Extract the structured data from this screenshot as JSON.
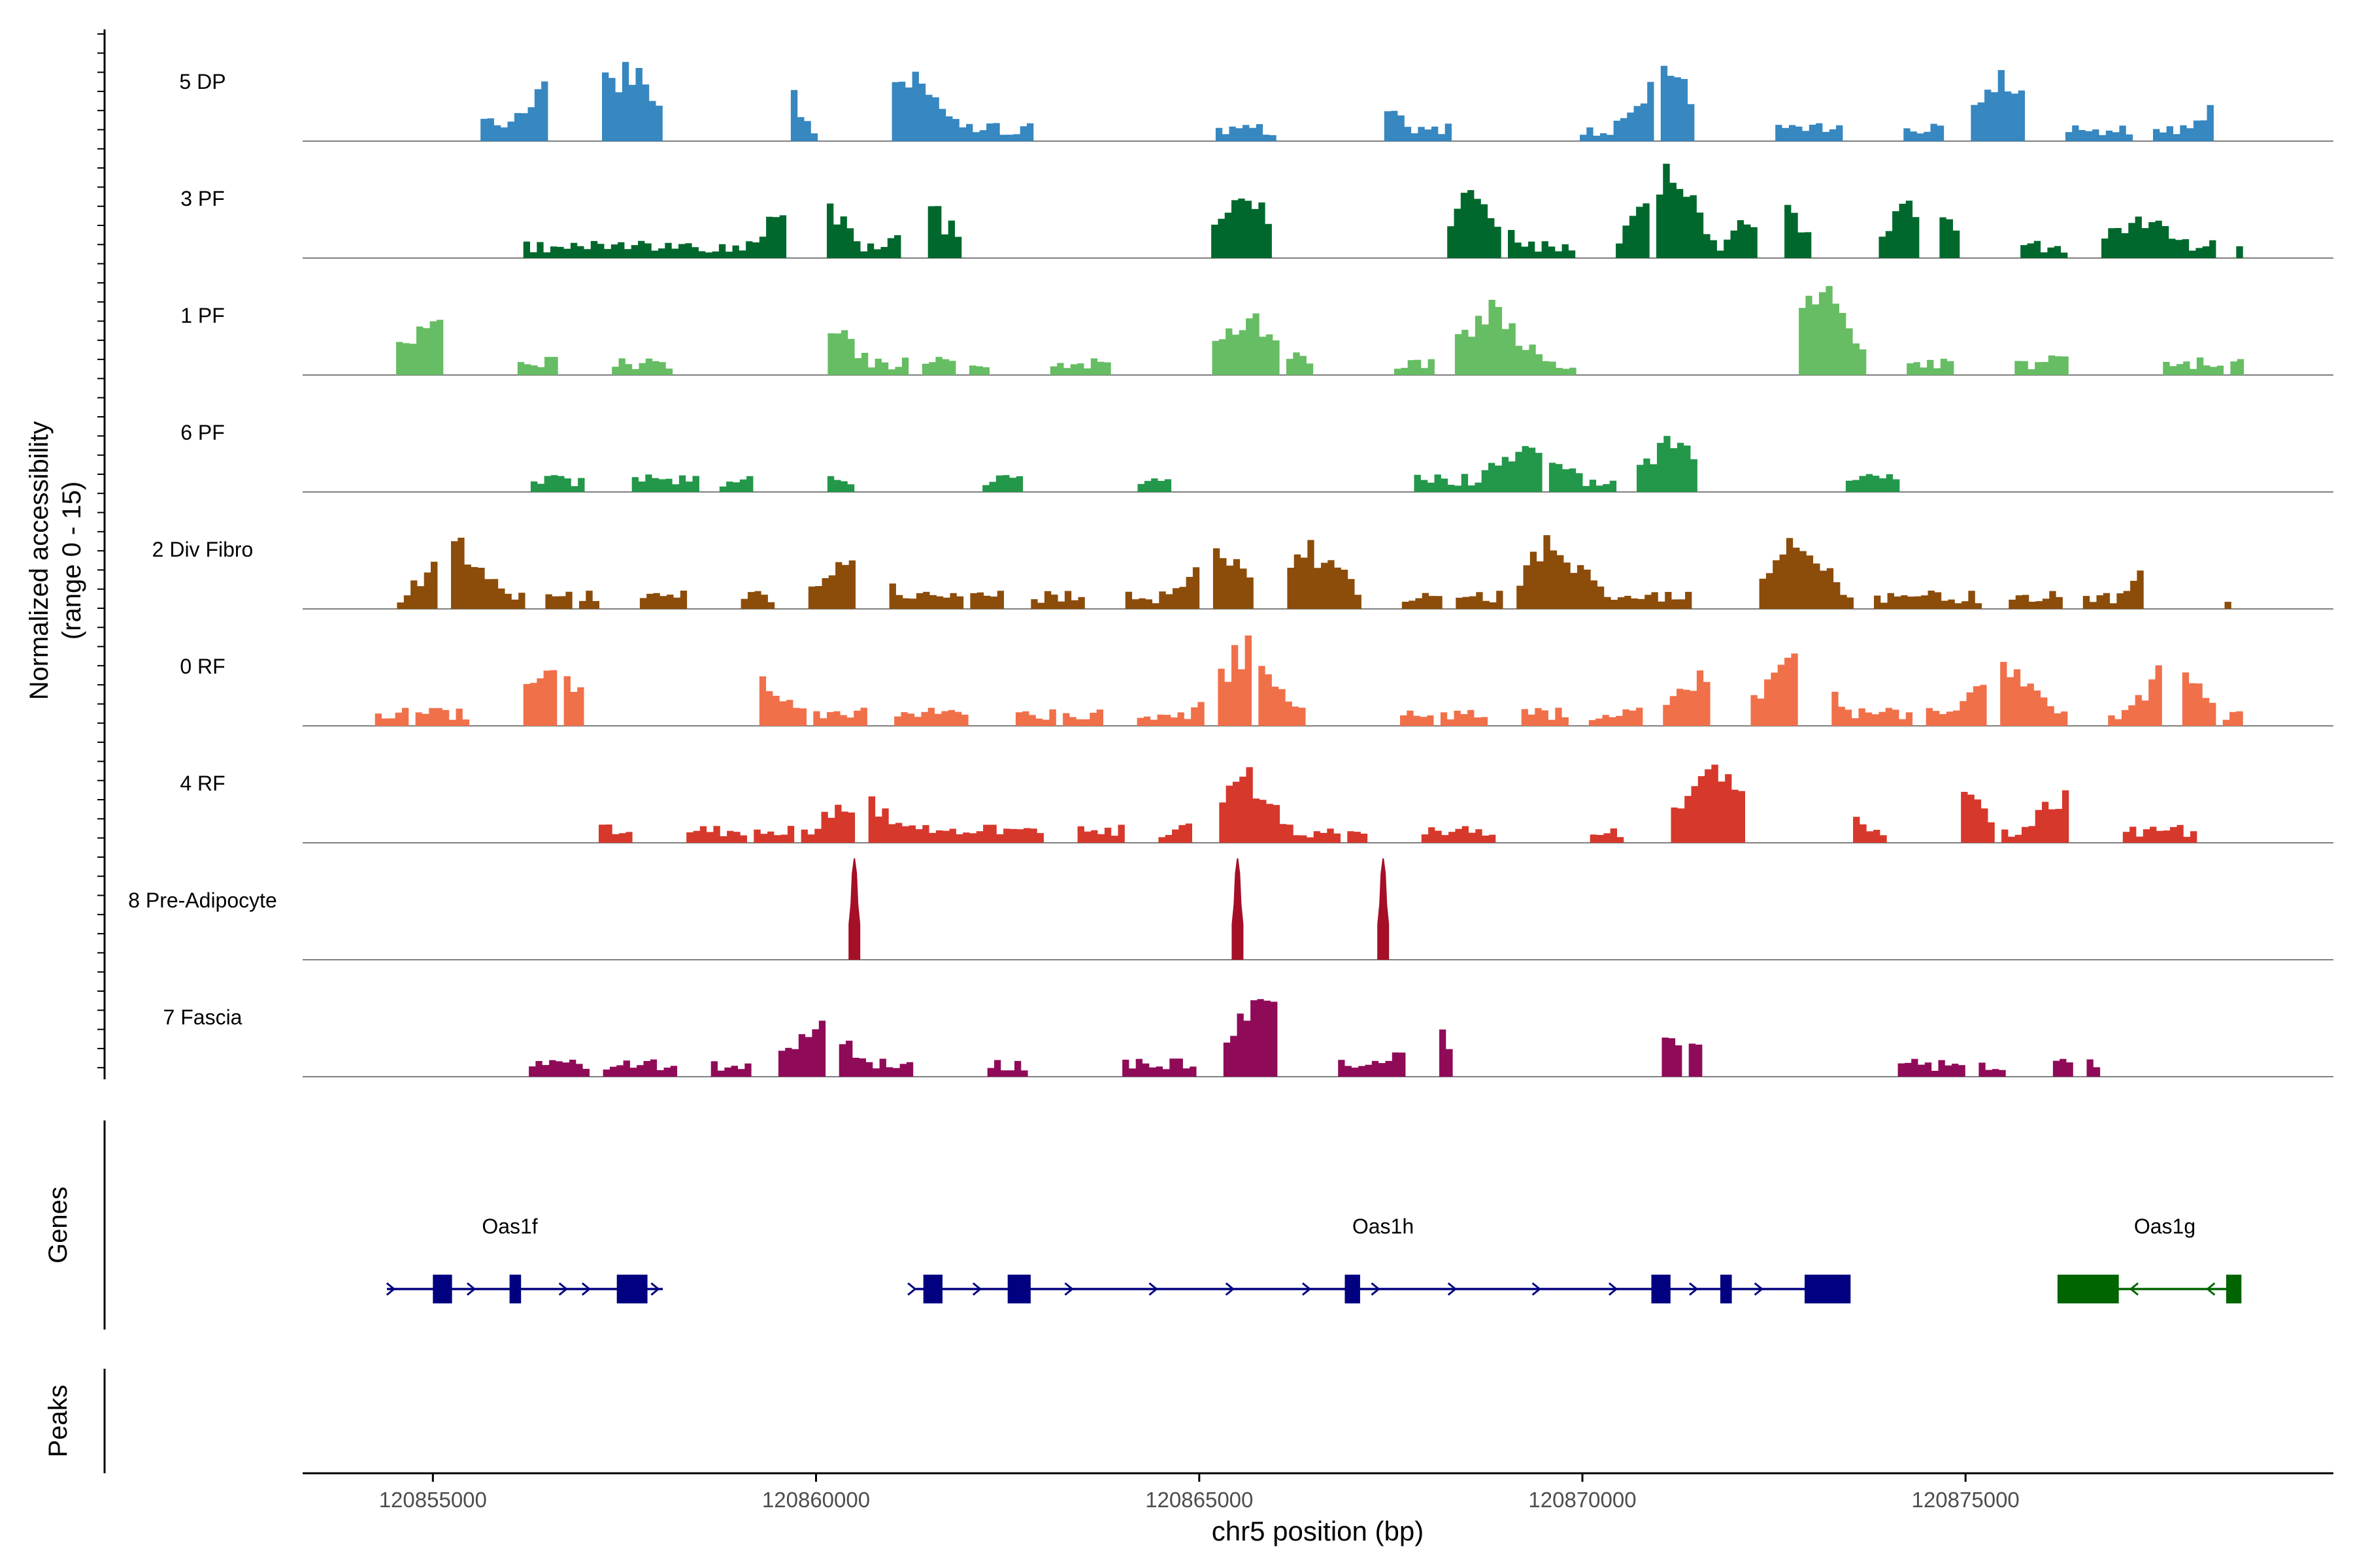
{
  "chart_data": {
    "type": "area",
    "title": "",
    "xlabel": "chr5 position (bp)",
    "ylabel_line1": "Normalized accessibility",
    "ylabel_line2": "(range 0 - 15)",
    "y_range": [
      0,
      15
    ],
    "x_range": [
      120853300,
      120879800
    ],
    "x_ticks": [
      120855000,
      120860000,
      120865000,
      120870000,
      120875000
    ],
    "x_tick_labels": [
      "120855000",
      "120860000",
      "120865000",
      "120870000",
      "120875000"
    ],
    "panel_labels": {
      "genes": "Genes",
      "peaks": "Peaks"
    },
    "tracks": [
      {
        "name": "5 DP",
        "color": "#3787c0",
        "seed": 11,
        "start": 120855050,
        "end": 120878600,
        "density": 0.55,
        "clusters": [
          [
            120855100,
            0.8
          ],
          [
            120856600,
            0.6
          ],
          [
            120857200,
            0.65
          ],
          [
            120857600,
            0.7
          ],
          [
            120858100,
            0.55
          ],
          [
            120859300,
            0.85
          ],
          [
            120859000,
            0.6
          ],
          [
            120861200,
            0.7
          ],
          [
            120867100,
            0.5
          ],
          [
            120871100,
            0.7
          ],
          [
            120875500,
            0.55
          ],
          [
            120878600,
            0.65
          ]
        ],
        "gaps": [
          [
            120862800,
            120865000
          ],
          [
            120868300,
            120869600
          ]
        ]
      },
      {
        "name": "3 PF",
        "color": "#00682c",
        "seed": 23,
        "start": 120854200,
        "end": 120878600,
        "density": 0.6,
        "clusters": [
          [
            120854400,
            0.35
          ],
          [
            120855300,
            0.55
          ],
          [
            120859900,
            0.95
          ],
          [
            120861500,
            0.4
          ],
          [
            120862700,
            0.5
          ],
          [
            120865600,
            0.6
          ],
          [
            120868500,
            0.6
          ],
          [
            120871100,
            0.9
          ],
          [
            120872500,
            0.6
          ],
          [
            120874400,
            0.6
          ],
          [
            120877300,
            0.4
          ]
        ],
        "gaps": [
          [
            120862900,
            120865000
          ]
        ]
      },
      {
        "name": "1 PF",
        "color": "#66bd63",
        "seed": 37,
        "start": 120854300,
        "end": 120878600,
        "density": 0.6,
        "clusters": [
          [
            120855000,
            0.5
          ],
          [
            120860000,
            0.7
          ],
          [
            120865700,
            0.55
          ],
          [
            120868800,
            0.6
          ],
          [
            120873100,
            0.85
          ],
          [
            120876800,
            0.5
          ]
        ],
        "gaps": [
          [
            120864000,
            120865000
          ],
          [
            120870100,
            120871500
          ]
        ]
      },
      {
        "name": "6 PF",
        "color": "#23974a",
        "seed": 51,
        "start": 120855000,
        "end": 120878600,
        "density": 0.35,
        "clusters": [
          [
            120855200,
            0.5
          ],
          [
            120865400,
            0.9
          ],
          [
            120865600,
            0.55
          ],
          [
            120869300,
            0.45
          ],
          [
            120871200,
            0.45
          ],
          [
            120878500,
            0.35
          ]
        ],
        "gaps": [
          [
            120872400,
            120873300
          ],
          [
            120874300,
            120878300
          ]
        ]
      },
      {
        "name": "2 Div Fibro",
        "color": "#8c4c0a",
        "seed": 67,
        "start": 120854400,
        "end": 120878500,
        "density": 0.6,
        "clusters": [
          [
            120855300,
            0.65
          ],
          [
            120860500,
            0.5
          ],
          [
            120865300,
            0.6
          ],
          [
            120866500,
            0.6
          ],
          [
            120869600,
            0.65
          ],
          [
            120872800,
            0.65
          ],
          [
            120877700,
            0.75
          ]
        ],
        "gaps": []
      },
      {
        "name": "0 RF",
        "color": "#f0704a",
        "seed": 79,
        "start": 120854200,
        "end": 120878600,
        "density": 0.7,
        "clusters": [
          [
            120856500,
            0.55
          ],
          [
            120857200,
            0.6
          ],
          [
            120859100,
            0.5
          ],
          [
            120865600,
            0.75
          ],
          [
            120871700,
            0.65
          ],
          [
            120872800,
            0.85
          ],
          [
            120875500,
            0.55
          ],
          [
            120877700,
            0.6
          ]
        ],
        "gaps": []
      },
      {
        "name": "4 RF",
        "color": "#d6382b",
        "seed": 91,
        "start": 120855800,
        "end": 120878600,
        "density": 0.65,
        "clusters": [
          [
            120860600,
            0.45
          ],
          [
            120865500,
            0.75
          ],
          [
            120871700,
            0.95
          ],
          [
            120873000,
            0.75
          ],
          [
            120874800,
            0.65
          ],
          [
            120876400,
            0.5
          ]
        ],
        "gaps": []
      },
      {
        "name": "8 Pre-Adipocyte",
        "color": "#a50f27",
        "seed": 103,
        "spikes": [
          120860500,
          120865500,
          120867400
        ],
        "spike_height": 0.93
      },
      {
        "name": "7 Fascia",
        "color": "#8f0b58",
        "seed": 117,
        "start": 120854800,
        "end": 120878600,
        "density": 0.45,
        "clusters": [
          [
            120855500,
            0.55
          ],
          [
            120860000,
            0.5
          ],
          [
            120865800,
            0.85
          ],
          [
            120868000,
            0.45
          ],
          [
            120871300,
            0.35
          ]
        ],
        "gaps": [
          [
            120868300,
            120871000
          ],
          [
            120871600,
            120873300
          ],
          [
            120876800,
            120878300
          ]
        ]
      }
    ],
    "genes": [
      {
        "name": "Oas1f",
        "label_x": 120856000,
        "strand": "+",
        "color": "#000080",
        "start": 120854400,
        "end": 120858000,
        "exons": [
          [
            120855000,
            120855250
          ],
          [
            120856000,
            120856150
          ],
          [
            120857400,
            120857800
          ]
        ],
        "arrows": [
          120854450,
          120855500,
          120856700,
          120857000,
          120857900
        ]
      },
      {
        "name": "Oas1h",
        "label_x": 120867400,
        "strand": "+",
        "color": "#000080",
        "start": 120861300,
        "end": 120873400,
        "exons": [
          [
            120861400,
            120861650
          ],
          [
            120862500,
            120862800
          ],
          [
            120866900,
            120867100
          ],
          [
            120870900,
            120871150
          ],
          [
            120871800,
            120871950
          ],
          [
            120872900,
            120873500
          ]
        ],
        "arrows": [
          120861250,
          120862100,
          120863300,
          120864400,
          120865400,
          120866400,
          120867300,
          120868300,
          120869400,
          120870400,
          120871450,
          120872300
        ]
      },
      {
        "name": "Oas1g",
        "label_x": 120877600,
        "strand": "-",
        "color": "#006400",
        "start": 120876200,
        "end": 120878500,
        "exons": [
          [
            120876200,
            120877000
          ],
          [
            120878400,
            120878600
          ]
        ],
        "arrows": [
          120877200,
          120878200
        ]
      }
    ]
  }
}
